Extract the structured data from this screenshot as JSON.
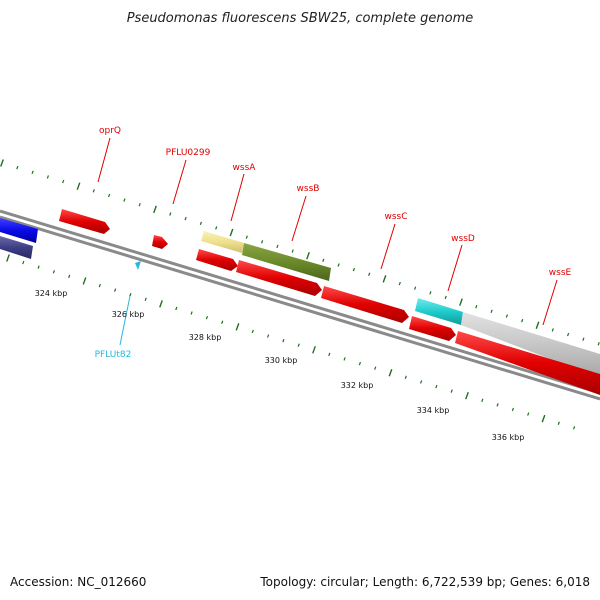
{
  "title": "Pseudomonas fluorescens SBW25, complete genome",
  "footer": {
    "accession": "Accession: NC_012660",
    "summary": "Topology: circular; Length: 6,722,539 bp; Genes: 6,018"
  },
  "colors": {
    "backbone": "#8a8a8a",
    "tick": "#1e6f1e",
    "gene_label": "#e00000",
    "trna_label": "#25b8dc"
  },
  "kbp_labels": [
    "324 kbp",
    "326 kbp",
    "328 kbp",
    "330 kbp",
    "332 kbp",
    "334 kbp",
    "336 kbp"
  ],
  "features": [
    {
      "name": "oprQ",
      "kind": "gene",
      "color": "#e00000"
    },
    {
      "name": "PFLU0299",
      "kind": "gene",
      "color": "#e00000"
    },
    {
      "name": "wssA",
      "kind": "gene",
      "color": "#e00000"
    },
    {
      "name": "wssB",
      "kind": "gene",
      "color": "#e00000"
    },
    {
      "name": "wssC",
      "kind": "gene",
      "color": "#e00000"
    },
    {
      "name": "wssD",
      "kind": "gene",
      "color": "#e00000"
    },
    {
      "name": "wssE",
      "kind": "gene",
      "color": "#e00000"
    },
    {
      "name": "PFLUt82",
      "kind": "trna",
      "color": "#25b8dc"
    }
  ]
}
